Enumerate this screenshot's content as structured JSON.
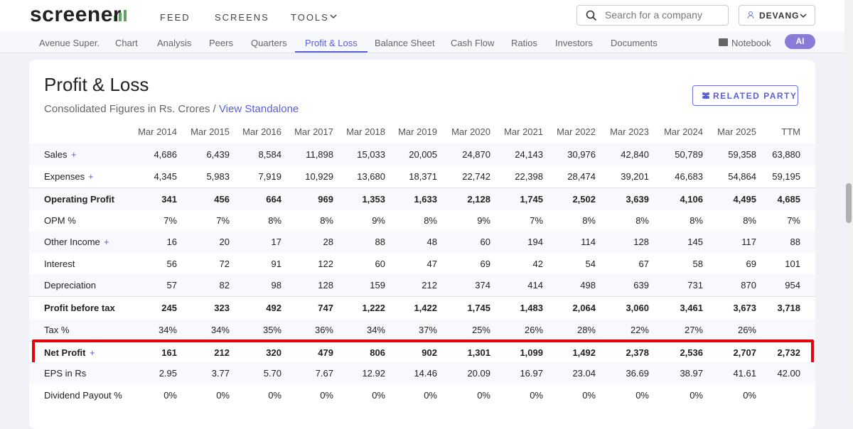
{
  "header": {
    "logo": "screener",
    "nav": [
      "FEED",
      "SCREENS",
      "TOOLS"
    ],
    "search_placeholder": "Search for a company",
    "user": "DEVANG"
  },
  "tabs": {
    "items": [
      "Avenue Super.",
      "Chart",
      "Analysis",
      "Peers",
      "Quarters",
      "Profit & Loss",
      "Balance Sheet",
      "Cash Flow",
      "Ratios",
      "Investors",
      "Documents"
    ],
    "active": 5,
    "notebook": "Notebook",
    "ai": "AI"
  },
  "section": {
    "title": "Profit & Loss",
    "subtitle": "Consolidated Figures in Rs. Crores /",
    "link": "View Standalone",
    "button": "RELATED PARTY"
  },
  "table": {
    "columns": [
      "Mar 2014",
      "Mar 2015",
      "Mar 2016",
      "Mar 2017",
      "Mar 2018",
      "Mar 2019",
      "Mar 2020",
      "Mar 2021",
      "Mar 2022",
      "Mar 2023",
      "Mar 2024",
      "Mar 2025",
      "TTM"
    ],
    "highlight_row": 9,
    "rows": [
      {
        "label": "Sales",
        "expand": "+",
        "values": [
          "4,686",
          "6,439",
          "8,584",
          "11,898",
          "15,033",
          "20,005",
          "24,870",
          "24,143",
          "30,976",
          "42,840",
          "50,789",
          "59,358",
          "63,880"
        ]
      },
      {
        "label": "Expenses",
        "expand": "+",
        "values": [
          "4,345",
          "5,983",
          "7,919",
          "10,929",
          "13,680",
          "18,371",
          "22,742",
          "22,398",
          "28,474",
          "39,201",
          "46,683",
          "54,864",
          "59,195"
        ]
      },
      {
        "label": "Operating Profit",
        "bold": true,
        "values": [
          "341",
          "456",
          "664",
          "969",
          "1,353",
          "1,633",
          "2,128",
          "1,745",
          "2,502",
          "3,639",
          "4,106",
          "4,495",
          "4,685"
        ]
      },
      {
        "label": "OPM %",
        "values": [
          "7%",
          "7%",
          "8%",
          "8%",
          "9%",
          "8%",
          "9%",
          "7%",
          "8%",
          "8%",
          "8%",
          "8%",
          "7%"
        ]
      },
      {
        "label": "Other Income",
        "expand": "+",
        "values": [
          "16",
          "20",
          "17",
          "28",
          "88",
          "48",
          "60",
          "194",
          "114",
          "128",
          "145",
          "117",
          "88"
        ]
      },
      {
        "label": "Interest",
        "values": [
          "56",
          "72",
          "91",
          "122",
          "60",
          "47",
          "69",
          "42",
          "54",
          "67",
          "58",
          "69",
          "101"
        ]
      },
      {
        "label": "Depreciation",
        "values": [
          "57",
          "82",
          "98",
          "128",
          "159",
          "212",
          "374",
          "414",
          "498",
          "639",
          "731",
          "870",
          "954"
        ]
      },
      {
        "label": "Profit before tax",
        "bold": true,
        "values": [
          "245",
          "323",
          "492",
          "747",
          "1,222",
          "1,422",
          "1,745",
          "1,483",
          "2,064",
          "3,060",
          "3,461",
          "3,673",
          "3,718"
        ]
      },
      {
        "label": "Tax %",
        "values": [
          "34%",
          "34%",
          "35%",
          "36%",
          "34%",
          "37%",
          "25%",
          "26%",
          "28%",
          "22%",
          "27%",
          "26%",
          null
        ]
      },
      {
        "label": "Net Profit",
        "expand": "+",
        "bold": true,
        "values": [
          "161",
          "212",
          "320",
          "479",
          "806",
          "902",
          "1,301",
          "1,099",
          "1,492",
          "2,378",
          "2,536",
          "2,707",
          "2,732"
        ]
      },
      {
        "label": "EPS in Rs",
        "values": [
          "2.95",
          "3.77",
          "5.70",
          "7.67",
          "12.92",
          "14.46",
          "20.09",
          "16.97",
          "23.04",
          "36.69",
          "38.97",
          "41.61",
          "42.00"
        ]
      },
      {
        "label": "Dividend Payout %",
        "values": [
          "0%",
          "0%",
          "0%",
          "0%",
          "0%",
          "0%",
          "0%",
          "0%",
          "0%",
          "0%",
          "0%",
          "0%",
          null
        ]
      }
    ]
  }
}
